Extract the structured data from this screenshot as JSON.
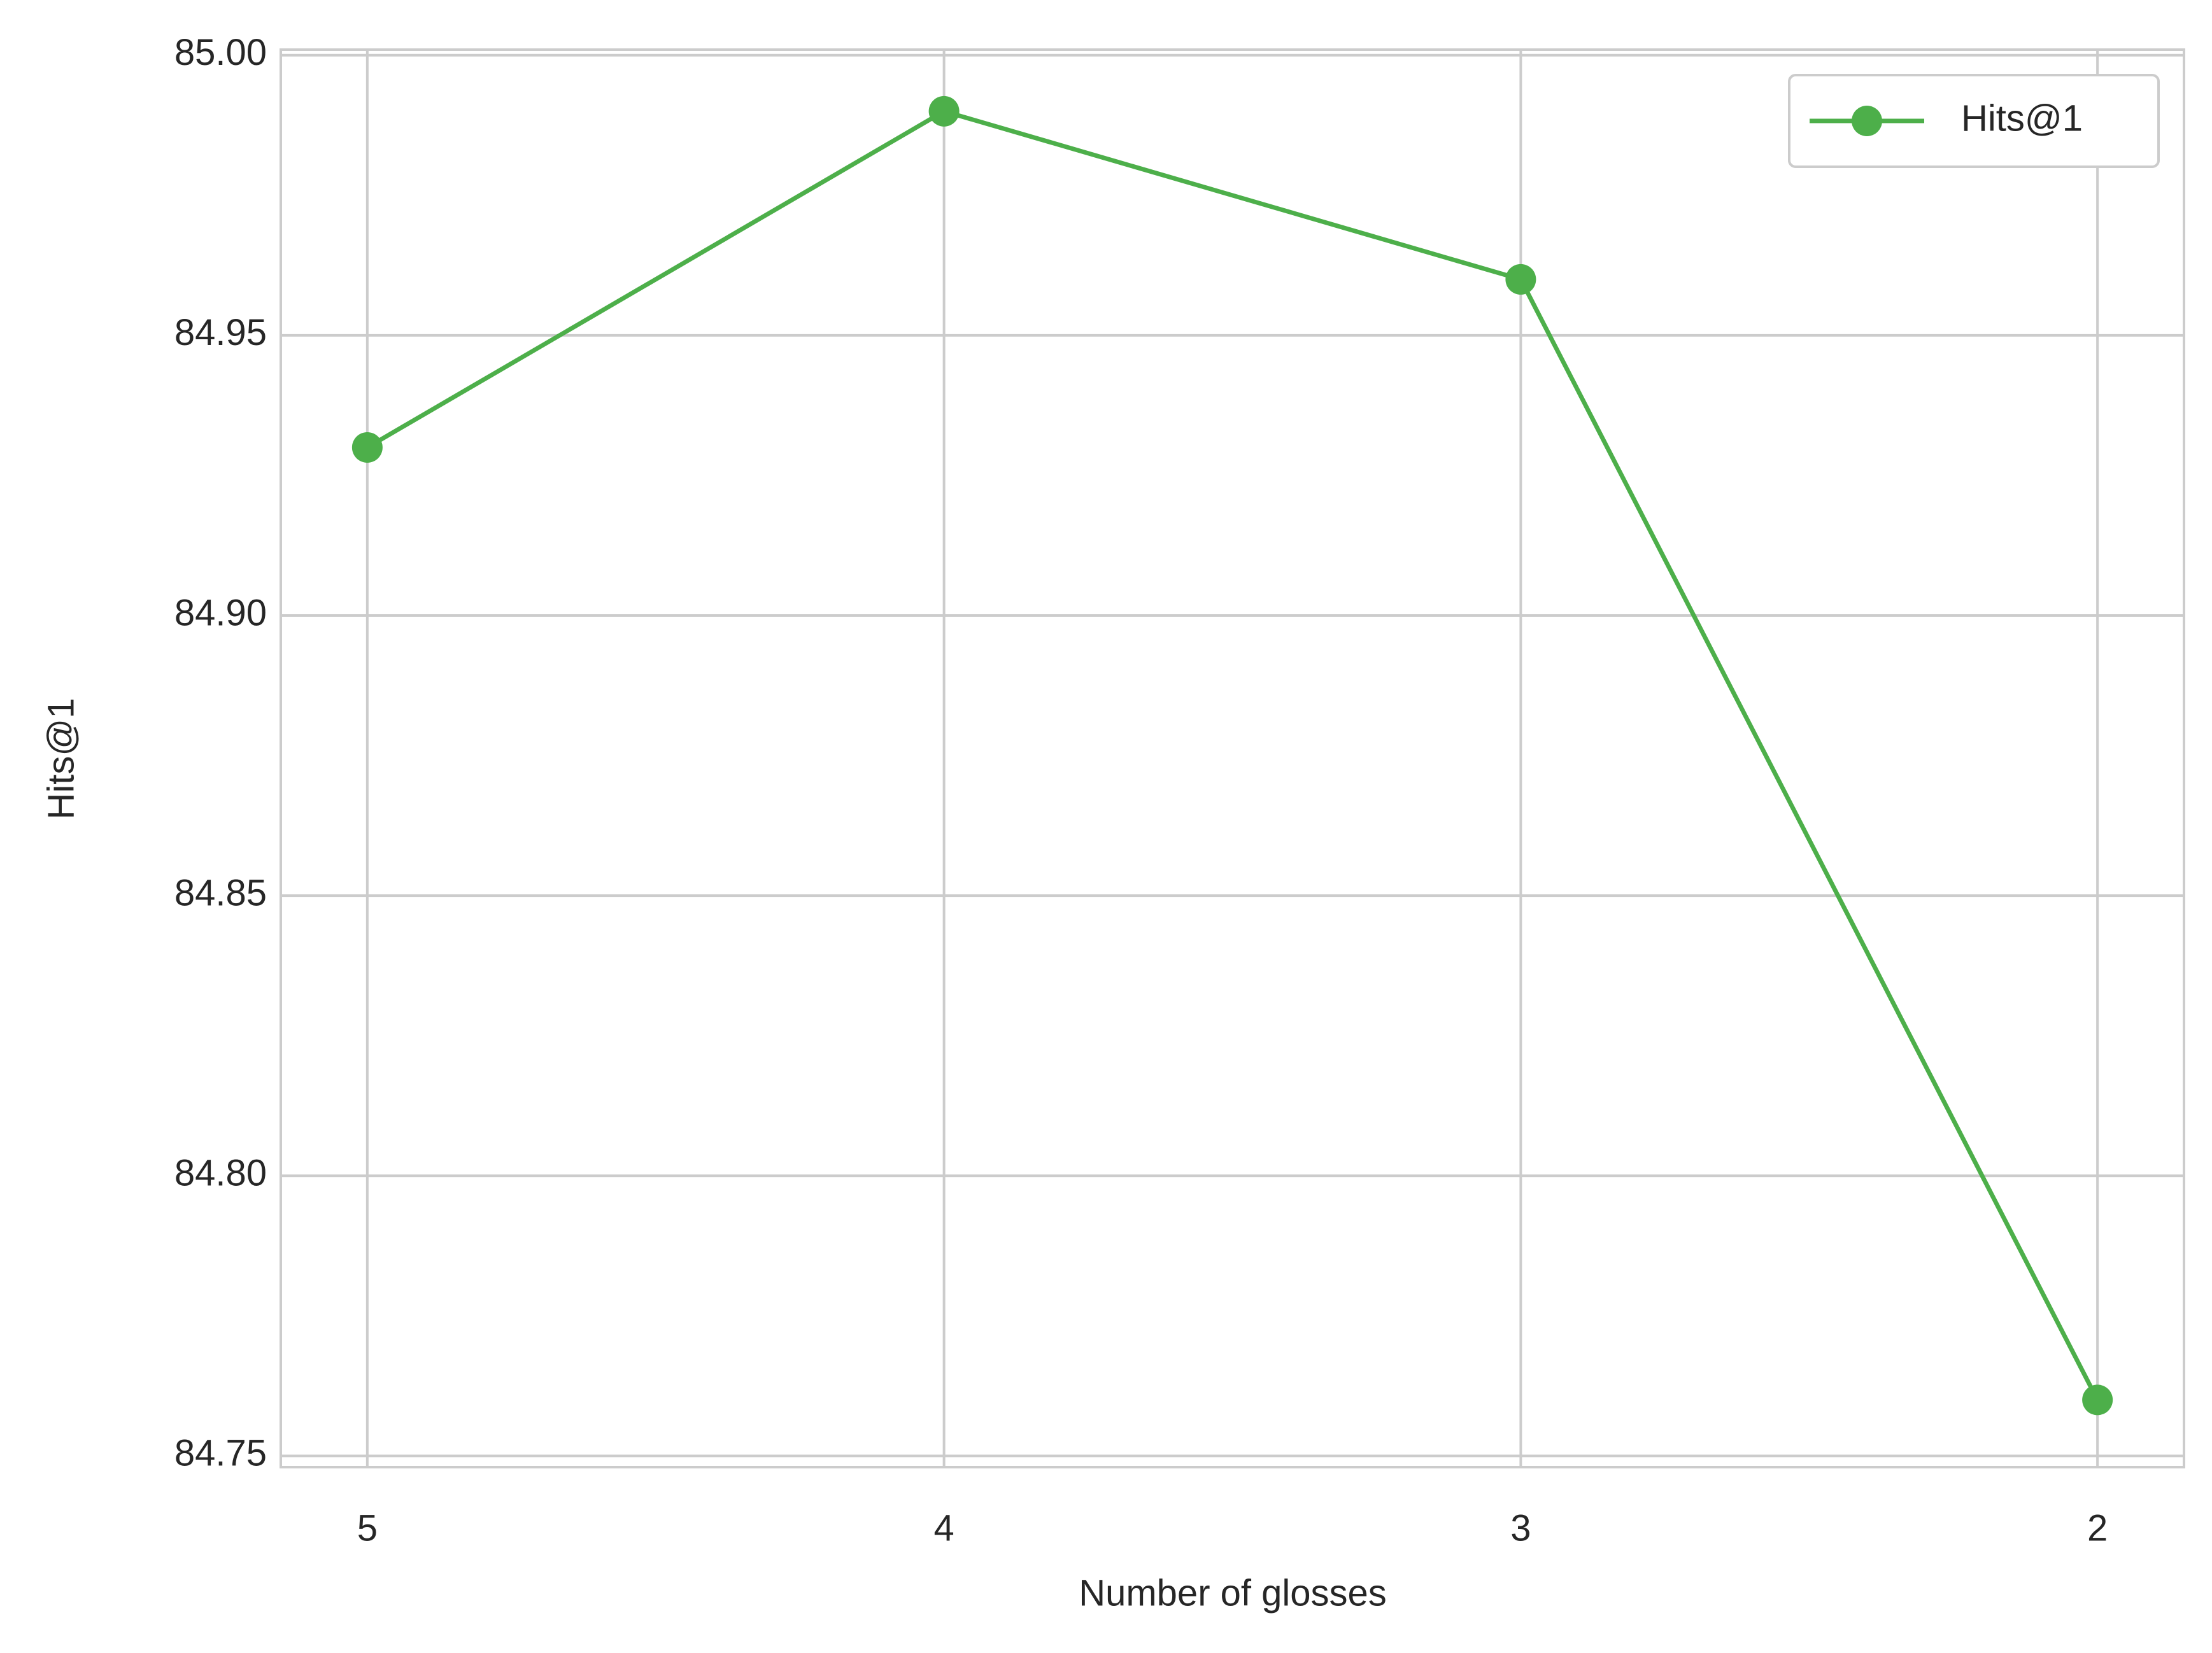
{
  "chart_data": {
    "type": "line",
    "x_label": "Number of glosses",
    "y_label": "Hits@1",
    "categories": [
      "5",
      "4",
      "3",
      "2"
    ],
    "series": [
      {
        "name": "Hits@1",
        "color": "#4daf4a",
        "values": [
          84.93,
          84.99,
          84.96,
          84.76
        ]
      }
    ],
    "ylim": [
      84.748,
      85.001
    ],
    "yticks": [
      {
        "value": 84.75,
        "label": "84.75"
      },
      {
        "value": 84.8,
        "label": "84.80"
      },
      {
        "value": 84.85,
        "label": "84.85"
      },
      {
        "value": 84.9,
        "label": "84.90"
      },
      {
        "value": 84.95,
        "label": "84.95"
      },
      {
        "value": 85,
        "label": "85.00"
      }
    ],
    "grid": true,
    "legend": "upper right"
  }
}
